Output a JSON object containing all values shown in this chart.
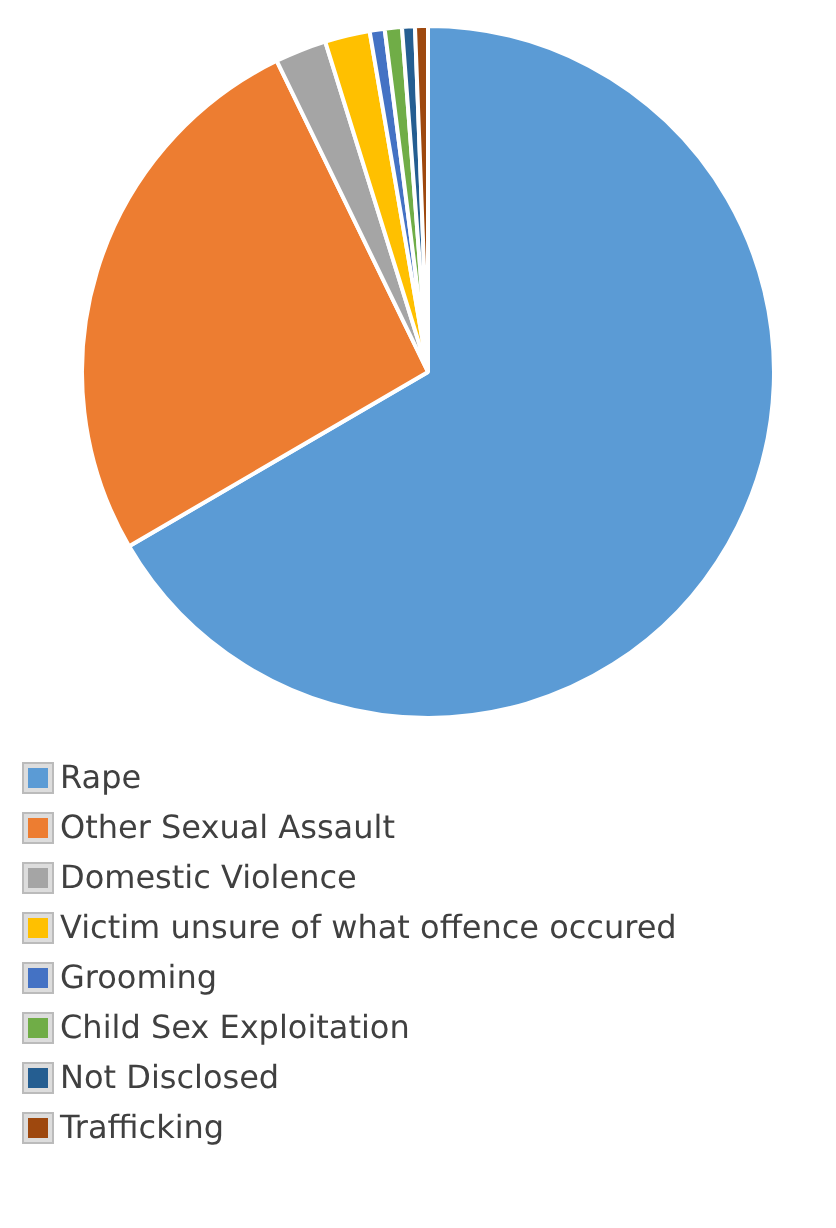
{
  "chart_data": {
    "type": "pie",
    "categories": [
      "Rape",
      "Other Sexual Assault",
      "Domestic Violence",
      "Victim unsure of what offence occured",
      "Grooming",
      "Child Sex Exploitation",
      "Not Disclosed",
      "Trafficking"
    ],
    "values": [
      66.6,
      26.2,
      2.4,
      2.1,
      0.7,
      0.8,
      0.6,
      0.6
    ],
    "colors": [
      "#5b9bd5",
      "#ed7d31",
      "#a5a5a5",
      "#ffc000",
      "#4472c4",
      "#70ad47",
      "#255e91",
      "#9e480e"
    ],
    "legend": "bottom"
  }
}
